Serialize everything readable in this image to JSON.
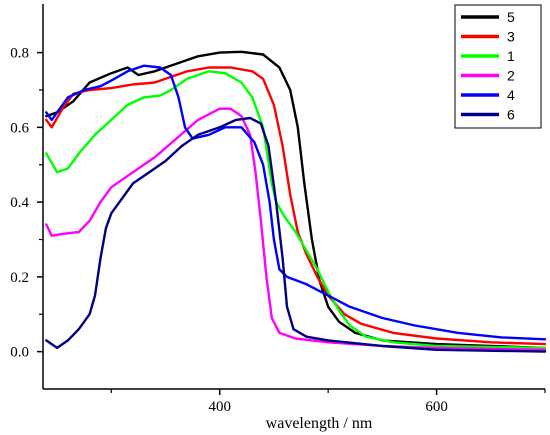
{
  "chart_data": {
    "type": "line",
    "title": "",
    "xlabel": "wavelength / nm",
    "ylabel": "",
    "xlim": [
      237,
      700
    ],
    "ylim": [
      -0.1,
      0.93
    ],
    "x_ticks": [
      400,
      600
    ],
    "x_tick_labels": [
      "400",
      "600"
    ],
    "y_ticks": [
      0.0,
      0.2,
      0.4,
      0.6,
      0.8
    ],
    "y_tick_labels": [
      "0.0",
      "0.2",
      "0.4",
      "0.6",
      "0.8"
    ],
    "grid": false,
    "legend_position": "top-right",
    "series": [
      {
        "name": "5",
        "color": "#000000",
        "points": [
          [
            240,
            0.63
          ],
          [
            250,
            0.64
          ],
          [
            265,
            0.67
          ],
          [
            280,
            0.72
          ],
          [
            300,
            0.745
          ],
          [
            315,
            0.76
          ],
          [
            325,
            0.74
          ],
          [
            340,
            0.75
          ],
          [
            360,
            0.77
          ],
          [
            380,
            0.79
          ],
          [
            400,
            0.8
          ],
          [
            420,
            0.802
          ],
          [
            440,
            0.795
          ],
          [
            455,
            0.76
          ],
          [
            465,
            0.7
          ],
          [
            472,
            0.6
          ],
          [
            478,
            0.45
          ],
          [
            485,
            0.3
          ],
          [
            492,
            0.19
          ],
          [
            500,
            0.12
          ],
          [
            510,
            0.08
          ],
          [
            525,
            0.05
          ],
          [
            550,
            0.03
          ],
          [
            600,
            0.02
          ],
          [
            650,
            0.015
          ],
          [
            700,
            0.01
          ]
        ]
      },
      {
        "name": "3",
        "color": "#ff0000",
        "points": [
          [
            240,
            0.62
          ],
          [
            245,
            0.6
          ],
          [
            255,
            0.65
          ],
          [
            265,
            0.69
          ],
          [
            280,
            0.7
          ],
          [
            300,
            0.705
          ],
          [
            320,
            0.715
          ],
          [
            340,
            0.72
          ],
          [
            355,
            0.735
          ],
          [
            370,
            0.75
          ],
          [
            390,
            0.76
          ],
          [
            410,
            0.76
          ],
          [
            430,
            0.75
          ],
          [
            440,
            0.73
          ],
          [
            450,
            0.66
          ],
          [
            458,
            0.55
          ],
          [
            465,
            0.42
          ],
          [
            472,
            0.32
          ],
          [
            480,
            0.26
          ],
          [
            490,
            0.2
          ],
          [
            500,
            0.15
          ],
          [
            515,
            0.1
          ],
          [
            530,
            0.075
          ],
          [
            560,
            0.05
          ],
          [
            600,
            0.035
          ],
          [
            650,
            0.025
          ],
          [
            700,
            0.02
          ]
        ]
      },
      {
        "name": "1",
        "color": "#00ff00",
        "points": [
          [
            240,
            0.53
          ],
          [
            250,
            0.48
          ],
          [
            260,
            0.49
          ],
          [
            270,
            0.53
          ],
          [
            285,
            0.58
          ],
          [
            300,
            0.62
          ],
          [
            315,
            0.66
          ],
          [
            330,
            0.68
          ],
          [
            345,
            0.685
          ],
          [
            355,
            0.7
          ],
          [
            370,
            0.73
          ],
          [
            390,
            0.75
          ],
          [
            405,
            0.745
          ],
          [
            420,
            0.72
          ],
          [
            430,
            0.68
          ],
          [
            440,
            0.6
          ],
          [
            448,
            0.45
          ],
          [
            452,
            0.4
          ],
          [
            460,
            0.36
          ],
          [
            470,
            0.32
          ],
          [
            480,
            0.27
          ],
          [
            490,
            0.22
          ],
          [
            500,
            0.16
          ],
          [
            510,
            0.11
          ],
          [
            520,
            0.07
          ],
          [
            535,
            0.04
          ],
          [
            560,
            0.025
          ],
          [
            600,
            0.015
          ],
          [
            700,
            0.01
          ]
        ]
      },
      {
        "name": "2",
        "color": "#ff00ff",
        "points": [
          [
            240,
            0.34
          ],
          [
            245,
            0.31
          ],
          [
            255,
            0.315
          ],
          [
            270,
            0.32
          ],
          [
            280,
            0.35
          ],
          [
            290,
            0.4
          ],
          [
            300,
            0.44
          ],
          [
            320,
            0.48
          ],
          [
            340,
            0.52
          ],
          [
            360,
            0.57
          ],
          [
            380,
            0.62
          ],
          [
            400,
            0.65
          ],
          [
            410,
            0.65
          ],
          [
            420,
            0.63
          ],
          [
            428,
            0.58
          ],
          [
            433,
            0.48
          ],
          [
            438,
            0.35
          ],
          [
            443,
            0.2
          ],
          [
            448,
            0.09
          ],
          [
            455,
            0.05
          ],
          [
            470,
            0.035
          ],
          [
            500,
            0.025
          ],
          [
            550,
            0.015
          ],
          [
            600,
            0.01
          ],
          [
            700,
            0.005
          ]
        ]
      },
      {
        "name": "4",
        "color": "#0000ff",
        "points": [
          [
            240,
            0.64
          ],
          [
            245,
            0.62
          ],
          [
            250,
            0.64
          ],
          [
            260,
            0.68
          ],
          [
            275,
            0.7
          ],
          [
            290,
            0.71
          ],
          [
            300,
            0.725
          ],
          [
            315,
            0.75
          ],
          [
            330,
            0.765
          ],
          [
            345,
            0.76
          ],
          [
            355,
            0.74
          ],
          [
            362,
            0.68
          ],
          [
            368,
            0.6
          ],
          [
            375,
            0.57
          ],
          [
            390,
            0.58
          ],
          [
            405,
            0.6
          ],
          [
            420,
            0.6
          ],
          [
            432,
            0.56
          ],
          [
            440,
            0.5
          ],
          [
            446,
            0.4
          ],
          [
            450,
            0.3
          ],
          [
            455,
            0.22
          ],
          [
            462,
            0.2
          ],
          [
            480,
            0.18
          ],
          [
            500,
            0.15
          ],
          [
            520,
            0.12
          ],
          [
            550,
            0.09
          ],
          [
            580,
            0.07
          ],
          [
            620,
            0.05
          ],
          [
            660,
            0.038
          ],
          [
            700,
            0.033
          ]
        ]
      },
      {
        "name": "6",
        "color": "#000080",
        "points": [
          [
            240,
            0.03
          ],
          [
            250,
            0.01
          ],
          [
            260,
            0.03
          ],
          [
            270,
            0.06
          ],
          [
            280,
            0.1
          ],
          [
            285,
            0.15
          ],
          [
            290,
            0.25
          ],
          [
            295,
            0.33
          ],
          [
            300,
            0.37
          ],
          [
            310,
            0.41
          ],
          [
            320,
            0.45
          ],
          [
            335,
            0.48
          ],
          [
            350,
            0.51
          ],
          [
            365,
            0.55
          ],
          [
            380,
            0.58
          ],
          [
            400,
            0.6
          ],
          [
            415,
            0.62
          ],
          [
            428,
            0.625
          ],
          [
            438,
            0.61
          ],
          [
            445,
            0.55
          ],
          [
            452,
            0.4
          ],
          [
            458,
            0.25
          ],
          [
            462,
            0.12
          ],
          [
            468,
            0.06
          ],
          [
            480,
            0.04
          ],
          [
            500,
            0.03
          ],
          [
            550,
            0.015
          ],
          [
            600,
            0.005
          ],
          [
            700,
            0.0
          ]
        ]
      }
    ]
  }
}
